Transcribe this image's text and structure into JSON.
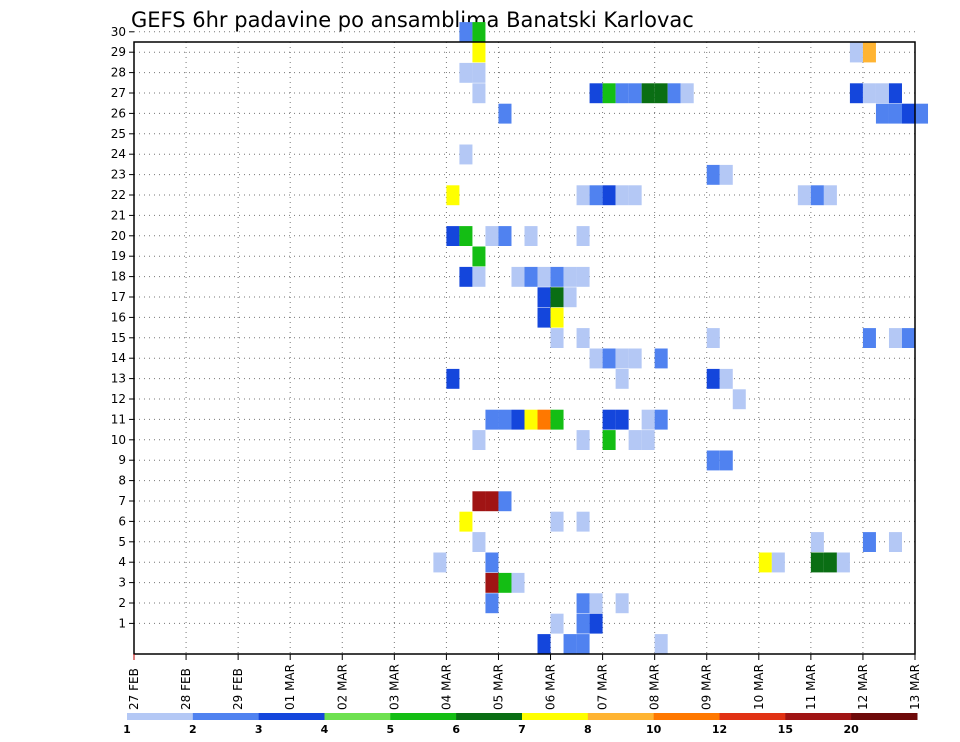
{
  "chart_data": {
    "type": "heatmap",
    "title": "GEFS 6hr padavine po ansamblima Banatski Karlovac",
    "y_categories": [
      "1",
      "2",
      "3",
      "4",
      "5",
      "6",
      "7",
      "8",
      "9",
      "10",
      "11",
      "12",
      "13",
      "14",
      "15",
      "16",
      "17",
      "18",
      "19",
      "20",
      "21",
      "22",
      "23",
      "24",
      "25",
      "26",
      "27",
      "28",
      "29",
      "30"
    ],
    "x_tick_labels": [
      "27 FEB",
      "28 FEB",
      "29 FEB",
      "01 MAR",
      "02 MAR",
      "03 MAR",
      "04 MAR",
      "05 MAR",
      "06 MAR",
      "07 MAR",
      "08 MAR",
      "09 MAR",
      "10 MAR",
      "11 MAR",
      "12 MAR",
      "13 MAR"
    ],
    "x_range_days": [
      0,
      15
    ],
    "grid": true,
    "colorbar": {
      "ticks": [
        "1",
        "2",
        "3",
        "4",
        "5",
        "6",
        "7",
        "8",
        "10",
        "12",
        "15",
        "20"
      ],
      "colors": [
        "#b4c8f5",
        "#5082f0",
        "#1446dc",
        "#6ee150",
        "#14be14",
        "#0a6e14",
        "#ffff00",
        "#ffb432",
        "#ff7800",
        "#e13214",
        "#a01414",
        "#6e0a0a"
      ]
    },
    "cells": [
      {
        "member": 30,
        "day": 6.25,
        "value": 2
      },
      {
        "member": 30,
        "day": 6.5,
        "value": 5
      },
      {
        "member": 29,
        "day": 6.5,
        "value": 7
      },
      {
        "member": 29,
        "day": 13.75,
        "value": 1
      },
      {
        "member": 29,
        "day": 14,
        "value": 8
      },
      {
        "member": 28,
        "day": 6.25,
        "value": 1
      },
      {
        "member": 28,
        "day": 6.5,
        "value": 1
      },
      {
        "member": 27,
        "day": 6.5,
        "value": 1
      },
      {
        "member": 27,
        "day": 8.75,
        "value": 3
      },
      {
        "member": 27,
        "day": 9,
        "value": 5
      },
      {
        "member": 27,
        "day": 9.25,
        "value": 2
      },
      {
        "member": 27,
        "day": 9.5,
        "value": 2
      },
      {
        "member": 27,
        "day": 9.75,
        "value": 6
      },
      {
        "member": 27,
        "day": 10,
        "value": 6
      },
      {
        "member": 27,
        "day": 10.25,
        "value": 2
      },
      {
        "member": 27,
        "day": 10.5,
        "value": 1
      },
      {
        "member": 27,
        "day": 13.75,
        "value": 3
      },
      {
        "member": 27,
        "day": 14,
        "value": 1
      },
      {
        "member": 27,
        "day": 14.25,
        "value": 1
      },
      {
        "member": 27,
        "day": 14.5,
        "value": 3
      },
      {
        "member": 26,
        "day": 7,
        "value": 2
      },
      {
        "member": 26,
        "day": 14.25,
        "value": 2
      },
      {
        "member": 26,
        "day": 14.5,
        "value": 2
      },
      {
        "member": 26,
        "day": 14.75,
        "value": 3
      },
      {
        "member": 26,
        "day": 15,
        "value": 2
      },
      {
        "member": 24,
        "day": 6.25,
        "value": 1
      },
      {
        "member": 23,
        "day": 11,
        "value": 2
      },
      {
        "member": 23,
        "day": 11.25,
        "value": 1
      },
      {
        "member": 22,
        "day": 6,
        "value": 7
      },
      {
        "member": 22,
        "day": 8.5,
        "value": 1
      },
      {
        "member": 22,
        "day": 8.75,
        "value": 2
      },
      {
        "member": 22,
        "day": 9,
        "value": 3
      },
      {
        "member": 22,
        "day": 9.25,
        "value": 1
      },
      {
        "member": 22,
        "day": 9.5,
        "value": 1
      },
      {
        "member": 22,
        "day": 12.75,
        "value": 1
      },
      {
        "member": 22,
        "day": 13,
        "value": 2
      },
      {
        "member": 22,
        "day": 13.25,
        "value": 1
      },
      {
        "member": 20,
        "day": 6,
        "value": 3
      },
      {
        "member": 20,
        "day": 6.25,
        "value": 5
      },
      {
        "member": 20,
        "day": 6.75,
        "value": 1
      },
      {
        "member": 20,
        "day": 7,
        "value": 2
      },
      {
        "member": 20,
        "day": 7.5,
        "value": 1
      },
      {
        "member": 20,
        "day": 8.5,
        "value": 1
      },
      {
        "member": 19,
        "day": 6.5,
        "value": 5
      },
      {
        "member": 18,
        "day": 6.25,
        "value": 3
      },
      {
        "member": 18,
        "day": 6.5,
        "value": 1
      },
      {
        "member": 18,
        "day": 7.25,
        "value": 1
      },
      {
        "member": 18,
        "day": 7.5,
        "value": 2
      },
      {
        "member": 18,
        "day": 7.75,
        "value": 1
      },
      {
        "member": 18,
        "day": 8,
        "value": 2
      },
      {
        "member": 18,
        "day": 8.25,
        "value": 1
      },
      {
        "member": 18,
        "day": 8.5,
        "value": 1
      },
      {
        "member": 17,
        "day": 7.75,
        "value": 3
      },
      {
        "member": 17,
        "day": 8,
        "value": 6
      },
      {
        "member": 17,
        "day": 8.25,
        "value": 1
      },
      {
        "member": 16,
        "day": 7.75,
        "value": 3
      },
      {
        "member": 16,
        "day": 8,
        "value": 7
      },
      {
        "member": 15,
        "day": 8,
        "value": 1
      },
      {
        "member": 15,
        "day": 8.5,
        "value": 1
      },
      {
        "member": 15,
        "day": 11,
        "value": 1
      },
      {
        "member": 15,
        "day": 14,
        "value": 2
      },
      {
        "member": 15,
        "day": 14.5,
        "value": 1
      },
      {
        "member": 15,
        "day": 14.75,
        "value": 2
      },
      {
        "member": 14,
        "day": 8.75,
        "value": 1
      },
      {
        "member": 14,
        "day": 9,
        "value": 2
      },
      {
        "member": 14,
        "day": 9.25,
        "value": 1
      },
      {
        "member": 14,
        "day": 9.5,
        "value": 1
      },
      {
        "member": 14,
        "day": 10,
        "value": 2
      },
      {
        "member": 13,
        "day": 6,
        "value": 3
      },
      {
        "member": 13,
        "day": 9.25,
        "value": 1
      },
      {
        "member": 13,
        "day": 11,
        "value": 3
      },
      {
        "member": 13,
        "day": 11.25,
        "value": 1
      },
      {
        "member": 12,
        "day": 11.5,
        "value": 1
      },
      {
        "member": 11,
        "day": 6.75,
        "value": 2
      },
      {
        "member": 11,
        "day": 7,
        "value": 2
      },
      {
        "member": 11,
        "day": 7.25,
        "value": 3
      },
      {
        "member": 11,
        "day": 7.5,
        "value": 7
      },
      {
        "member": 11,
        "day": 7.75,
        "value": 10
      },
      {
        "member": 11,
        "day": 8,
        "value": 5
      },
      {
        "member": 11,
        "day": 9,
        "value": 3
      },
      {
        "member": 11,
        "day": 9.25,
        "value": 3
      },
      {
        "member": 11,
        "day": 9.75,
        "value": 1
      },
      {
        "member": 11,
        "day": 10,
        "value": 2
      },
      {
        "member": 10,
        "day": 6.5,
        "value": 1
      },
      {
        "member": 10,
        "day": 8.5,
        "value": 1
      },
      {
        "member": 10,
        "day": 9,
        "value": 5
      },
      {
        "member": 10,
        "day": 9.5,
        "value": 1
      },
      {
        "member": 10,
        "day": 9.75,
        "value": 1
      },
      {
        "member": 9,
        "day": 11,
        "value": 2
      },
      {
        "member": 9,
        "day": 11.25,
        "value": 2
      },
      {
        "member": 7,
        "day": 6.5,
        "value": 15
      },
      {
        "member": 7,
        "day": 6.75,
        "value": 15
      },
      {
        "member": 7,
        "day": 7,
        "value": 2
      },
      {
        "member": 6,
        "day": 6.25,
        "value": 7
      },
      {
        "member": 6,
        "day": 8,
        "value": 1
      },
      {
        "member": 6,
        "day": 8.5,
        "value": 1
      },
      {
        "member": 5,
        "day": 6.5,
        "value": 1
      },
      {
        "member": 5,
        "day": 13,
        "value": 1
      },
      {
        "member": 5,
        "day": 14,
        "value": 2
      },
      {
        "member": 5,
        "day": 14.5,
        "value": 1
      },
      {
        "member": 4,
        "day": 5.75,
        "value": 1
      },
      {
        "member": 4,
        "day": 6.75,
        "value": 2
      },
      {
        "member": 4,
        "day": 12,
        "value": 7
      },
      {
        "member": 4,
        "day": 12.25,
        "value": 1
      },
      {
        "member": 4,
        "day": 13,
        "value": 6
      },
      {
        "member": 4,
        "day": 13.25,
        "value": 6
      },
      {
        "member": 4,
        "day": 13.5,
        "value": 1
      },
      {
        "member": 3,
        "day": 6.75,
        "value": 15
      },
      {
        "member": 3,
        "day": 7,
        "value": 5
      },
      {
        "member": 3,
        "day": 7.25,
        "value": 1
      },
      {
        "member": 2,
        "day": 6.75,
        "value": 2
      },
      {
        "member": 2,
        "day": 8.5,
        "value": 2
      },
      {
        "member": 2,
        "day": 8.75,
        "value": 1
      },
      {
        "member": 2,
        "day": 9.25,
        "value": 1
      },
      {
        "member": 1,
        "day": 8,
        "value": 1
      },
      {
        "member": 1,
        "day": 8.5,
        "value": 2
      },
      {
        "member": 1,
        "day": 8.75,
        "value": 3
      },
      {
        "member": 0,
        "day": 7.75,
        "value": 3
      },
      {
        "member": 0,
        "day": 8.25,
        "value": 2
      },
      {
        "member": 0,
        "day": 8.5,
        "value": 2
      },
      {
        "member": 0,
        "day": 10,
        "value": 1
      }
    ]
  }
}
